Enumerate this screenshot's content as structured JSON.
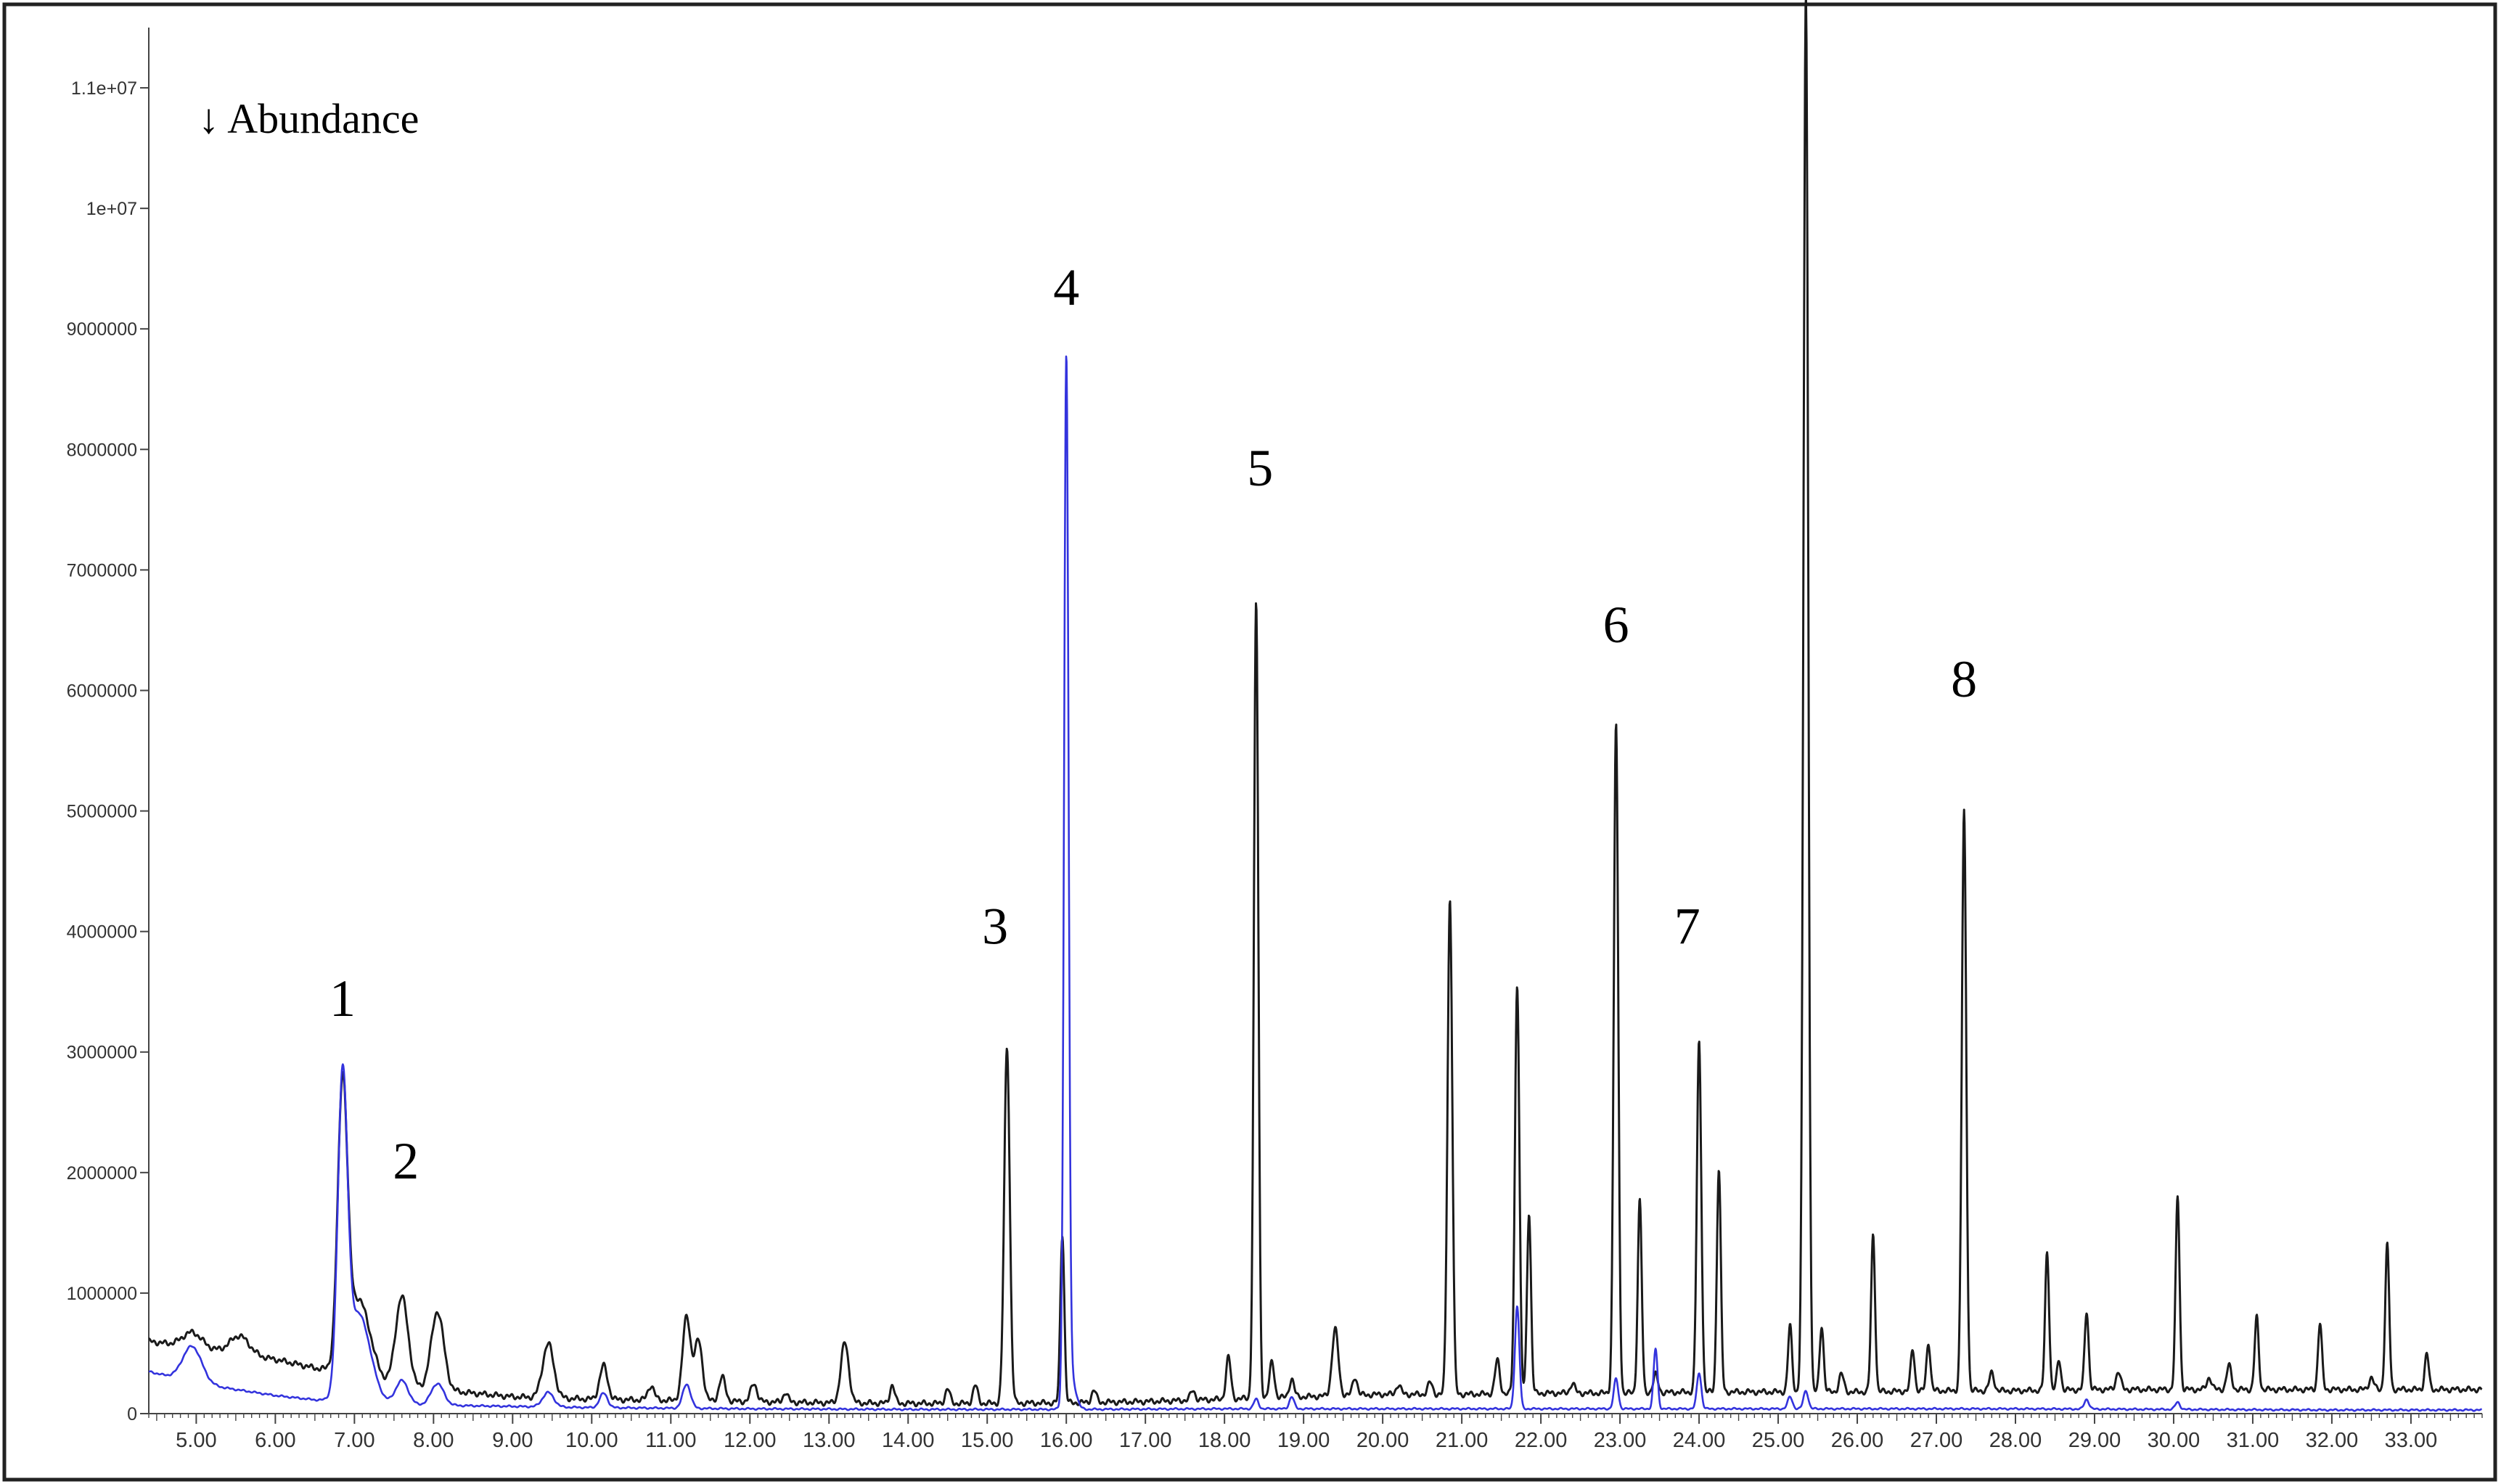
{
  "chart_data": {
    "type": "line",
    "ylabel": "↓ Abundance",
    "xlabel": "",
    "xlim": [
      4.4,
      33.9
    ],
    "ylim": [
      0,
      11500000
    ],
    "x_ticks": [
      "5.00",
      "6.00",
      "7.00",
      "8.00",
      "9.00",
      "10.00",
      "11.00",
      "12.00",
      "13.00",
      "14.00",
      "15.00",
      "16.00",
      "17.00",
      "18.00",
      "19.00",
      "20.00",
      "21.00",
      "22.00",
      "23.00",
      "24.00",
      "25.00",
      "26.00",
      "27.00",
      "28.00",
      "29.00",
      "30.00",
      "31.00",
      "32.00",
      "33.00"
    ],
    "x_tick_values": [
      5,
      6,
      7,
      8,
      9,
      10,
      11,
      12,
      13,
      14,
      15,
      16,
      17,
      18,
      19,
      20,
      21,
      22,
      23,
      24,
      25,
      26,
      27,
      28,
      29,
      30,
      31,
      32,
      33
    ],
    "y_ticks": [
      "1.1e+07",
      "1e+07",
      "9000000",
      "8000000",
      "7000000",
      "6000000",
      "5000000",
      "4000000",
      "3000000",
      "2000000",
      "1000000",
      "0"
    ],
    "y_tick_values": [
      11000000,
      10000000,
      9000000,
      8000000,
      7000000,
      6000000,
      5000000,
      4000000,
      3000000,
      2000000,
      1000000,
      0
    ],
    "peak_labels": [
      {
        "text": "1",
        "x": 6.85,
        "y": 3300000
      },
      {
        "text": "2",
        "x": 7.65,
        "y": 1950000
      },
      {
        "text": "3",
        "x": 15.1,
        "y": 3900000
      },
      {
        "text": "4",
        "x": 16.0,
        "y": 9200000
      },
      {
        "text": "5",
        "x": 18.45,
        "y": 7700000
      },
      {
        "text": "6",
        "x": 22.95,
        "y": 6400000
      },
      {
        "text": "7",
        "x": 23.85,
        "y": 3900000
      },
      {
        "text": "8",
        "x": 27.35,
        "y": 5950000
      }
    ],
    "series": [
      {
        "color": "#1a1a1a",
        "baseline": [
          [
            4.4,
            600000
          ],
          [
            5.0,
            550000
          ],
          [
            5.5,
            500000
          ],
          [
            6.0,
            450000
          ],
          [
            6.7,
            350000
          ],
          [
            7.0,
            250000
          ],
          [
            8.0,
            200000
          ],
          [
            9.0,
            140000
          ],
          [
            10.0,
            120000
          ],
          [
            11.0,
            110000
          ],
          [
            12.0,
            100000
          ],
          [
            13.0,
            90000
          ],
          [
            14.0,
            85000
          ],
          [
            15.0,
            85000
          ],
          [
            16.0,
            90000
          ],
          [
            17.0,
            100000
          ],
          [
            18.0,
            120000
          ],
          [
            19.0,
            140000
          ],
          [
            20.0,
            160000
          ],
          [
            21.0,
            160000
          ],
          [
            22.0,
            170000
          ],
          [
            23.0,
            170000
          ],
          [
            24.0,
            180000
          ],
          [
            25.0,
            180000
          ],
          [
            26.0,
            180000
          ],
          [
            27.0,
            190000
          ],
          [
            28.0,
            190000
          ],
          [
            29.0,
            200000
          ],
          [
            30.0,
            200000
          ],
          [
            31.0,
            200000
          ],
          [
            32.0,
            200000
          ],
          [
            33.0,
            200000
          ],
          [
            33.9,
            200000
          ]
        ],
        "peaks": [
          [
            4.95,
            120000,
            0.12
          ],
          [
            5.55,
            150000,
            0.12
          ],
          [
            6.85,
            2250000,
            0.06
          ],
          [
            7.05,
            700000,
            0.15
          ],
          [
            7.6,
            750000,
            0.08
          ],
          [
            8.05,
            650000,
            0.08
          ],
          [
            9.45,
            450000,
            0.07
          ],
          [
            10.15,
            280000,
            0.05
          ],
          [
            10.75,
            120000,
            0.04
          ],
          [
            11.2,
            700000,
            0.05
          ],
          [
            11.35,
            500000,
            0.05
          ],
          [
            11.65,
            200000,
            0.04
          ],
          [
            12.05,
            150000,
            0.04
          ],
          [
            12.45,
            80000,
            0.03
          ],
          [
            13.2,
            500000,
            0.05
          ],
          [
            13.8,
            150000,
            0.03
          ],
          [
            14.5,
            120000,
            0.03
          ],
          [
            14.85,
            150000,
            0.03
          ],
          [
            15.25,
            2950000,
            0.035
          ],
          [
            15.95,
            1400000,
            0.025
          ],
          [
            16.35,
            100000,
            0.03
          ],
          [
            17.6,
            80000,
            0.03
          ],
          [
            18.05,
            350000,
            0.03
          ],
          [
            18.4,
            6600000,
            0.028
          ],
          [
            18.6,
            300000,
            0.03
          ],
          [
            18.85,
            150000,
            0.03
          ],
          [
            19.4,
            550000,
            0.04
          ],
          [
            19.65,
            150000,
            0.03
          ],
          [
            20.2,
            80000,
            0.03
          ],
          [
            20.6,
            100000,
            0.03
          ],
          [
            20.85,
            4100000,
            0.03
          ],
          [
            21.45,
            280000,
            0.03
          ],
          [
            21.7,
            3400000,
            0.028
          ],
          [
            21.85,
            1500000,
            0.025
          ],
          [
            22.4,
            80000,
            0.03
          ],
          [
            22.95,
            5550000,
            0.028
          ],
          [
            23.25,
            1600000,
            0.025
          ],
          [
            23.45,
            150000,
            0.03
          ],
          [
            24.0,
            2900000,
            0.028
          ],
          [
            24.25,
            1850000,
            0.025
          ],
          [
            25.15,
            550000,
            0.025
          ],
          [
            25.35,
            11600000,
            0.03
          ],
          [
            25.55,
            550000,
            0.025
          ],
          [
            25.8,
            150000,
            0.03
          ],
          [
            26.2,
            1300000,
            0.025
          ],
          [
            26.7,
            350000,
            0.025
          ],
          [
            26.9,
            400000,
            0.025
          ],
          [
            27.35,
            4800000,
            0.028
          ],
          [
            27.7,
            150000,
            0.03
          ],
          [
            28.4,
            1150000,
            0.025
          ],
          [
            28.55,
            250000,
            0.025
          ],
          [
            28.9,
            650000,
            0.025
          ],
          [
            29.3,
            150000,
            0.03
          ],
          [
            30.05,
            1600000,
            0.025
          ],
          [
            30.45,
            100000,
            0.03
          ],
          [
            30.7,
            200000,
            0.03
          ],
          [
            31.05,
            600000,
            0.025
          ],
          [
            31.85,
            550000,
            0.025
          ],
          [
            32.5,
            100000,
            0.03
          ],
          [
            32.7,
            1200000,
            0.025
          ],
          [
            33.2,
            300000,
            0.025
          ]
        ]
      },
      {
        "color": "#3333dd",
        "baseline": [
          [
            4.4,
            350000
          ],
          [
            5.0,
            250000
          ],
          [
            6.0,
            150000
          ],
          [
            6.7,
            100000
          ],
          [
            7.0,
            80000
          ],
          [
            8.0,
            70000
          ],
          [
            9.0,
            60000
          ],
          [
            10.0,
            50000
          ],
          [
            11.0,
            45000
          ],
          [
            12.0,
            40000
          ],
          [
            14.0,
            35000
          ],
          [
            16.0,
            35000
          ],
          [
            18.0,
            40000
          ],
          [
            20.0,
            40000
          ],
          [
            22.0,
            40000
          ],
          [
            24.0,
            40000
          ],
          [
            26.0,
            40000
          ],
          [
            28.0,
            40000
          ],
          [
            30.0,
            35000
          ],
          [
            32.0,
            30000
          ],
          [
            33.9,
            30000
          ]
        ],
        "peaks": [
          [
            4.95,
            300000,
            0.12
          ],
          [
            6.85,
            2500000,
            0.06
          ],
          [
            7.05,
            750000,
            0.15
          ],
          [
            7.6,
            200000,
            0.08
          ],
          [
            8.05,
            180000,
            0.08
          ],
          [
            9.45,
            120000,
            0.07
          ],
          [
            10.15,
            120000,
            0.05
          ],
          [
            11.2,
            200000,
            0.05
          ],
          [
            16.0,
            8550000,
            0.028
          ],
          [
            16.05,
            300000,
            0.06
          ],
          [
            18.4,
            80000,
            0.03
          ],
          [
            18.85,
            100000,
            0.03
          ],
          [
            21.7,
            850000,
            0.028
          ],
          [
            22.95,
            250000,
            0.028
          ],
          [
            23.45,
            500000,
            0.025
          ],
          [
            24.0,
            300000,
            0.028
          ],
          [
            25.15,
            100000,
            0.03
          ],
          [
            25.35,
            150000,
            0.03
          ],
          [
            28.9,
            80000,
            0.03
          ],
          [
            30.05,
            60000,
            0.03
          ]
        ]
      }
    ]
  }
}
